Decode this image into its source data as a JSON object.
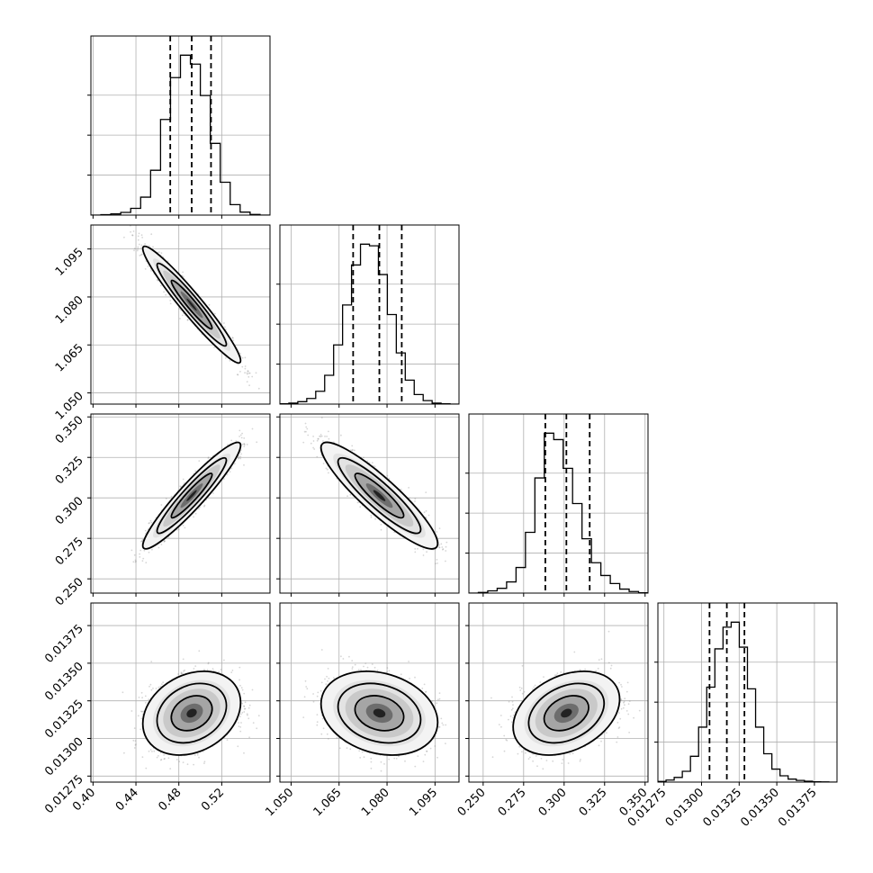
{
  "chart_data": {
    "type": "corner",
    "parameters": [
      {
        "ticks": [
          0.4,
          0.44,
          0.48,
          0.52
        ],
        "tick_labels": [
          "0.40",
          "0.44",
          "0.48",
          "0.52"
        ],
        "range": [
          0.398,
          0.565
        ]
      },
      {
        "ticks": [
          1.05,
          1.065,
          1.08,
          1.095
        ],
        "tick_labels": [
          "1.050",
          "1.065",
          "1.080",
          "1.095"
        ],
        "range": [
          1.0465,
          1.1025
        ]
      },
      {
        "ticks": [
          0.25,
          0.275,
          0.3,
          0.325,
          0.35
        ],
        "tick_labels": [
          "0.250",
          "0.275",
          "0.300",
          "0.325",
          "0.350"
        ],
        "range": [
          0.2412,
          0.3518
        ]
      },
      {
        "ticks": [
          0.01275,
          0.013,
          0.01325,
          0.0135,
          0.01375
        ],
        "tick_labels": [
          "0.01275",
          "0.01300",
          "0.01325",
          "0.01350",
          "0.01375"
        ],
        "range": [
          0.01271,
          0.0139
        ]
      }
    ],
    "quantiles": [
      [
        0.472,
        0.492,
        0.51
      ],
      [
        1.0694,
        1.0776,
        1.0846
      ],
      [
        0.2884,
        0.3014,
        0.3158
      ],
      [
        0.013053,
        0.013168,
        0.013285
      ]
    ],
    "hist_counts": [
      [
        0,
        3,
        8,
        18,
        45,
        120,
        300,
        640,
        920,
        1070,
        1010,
        800,
        480,
        220,
        70,
        20,
        4,
        0
      ],
      [
        2,
        6,
        15,
        35,
        80,
        180,
        370,
        620,
        870,
        1000,
        990,
        810,
        560,
        320,
        150,
        60,
        22,
        6,
        2,
        0
      ],
      [
        0,
        4,
        14,
        30,
        70,
        160,
        380,
        720,
        1000,
        960,
        780,
        560,
        340,
        190,
        110,
        60,
        25,
        10,
        2
      ],
      [
        4,
        12,
        28,
        65,
        155,
        330,
        570,
        800,
        930,
        960,
        810,
        560,
        330,
        170,
        78,
        38,
        18,
        10,
        5,
        2,
        1,
        0
      ]
    ],
    "correlations": [
      [
        1.0,
        -0.96,
        0.94,
        0.25
      ],
      [
        -0.96,
        1.0,
        -0.9,
        -0.22
      ],
      [
        0.94,
        -0.9,
        1.0,
        0.33
      ],
      [
        0.25,
        -0.22,
        0.33,
        1.0
      ]
    ],
    "grid": true
  }
}
